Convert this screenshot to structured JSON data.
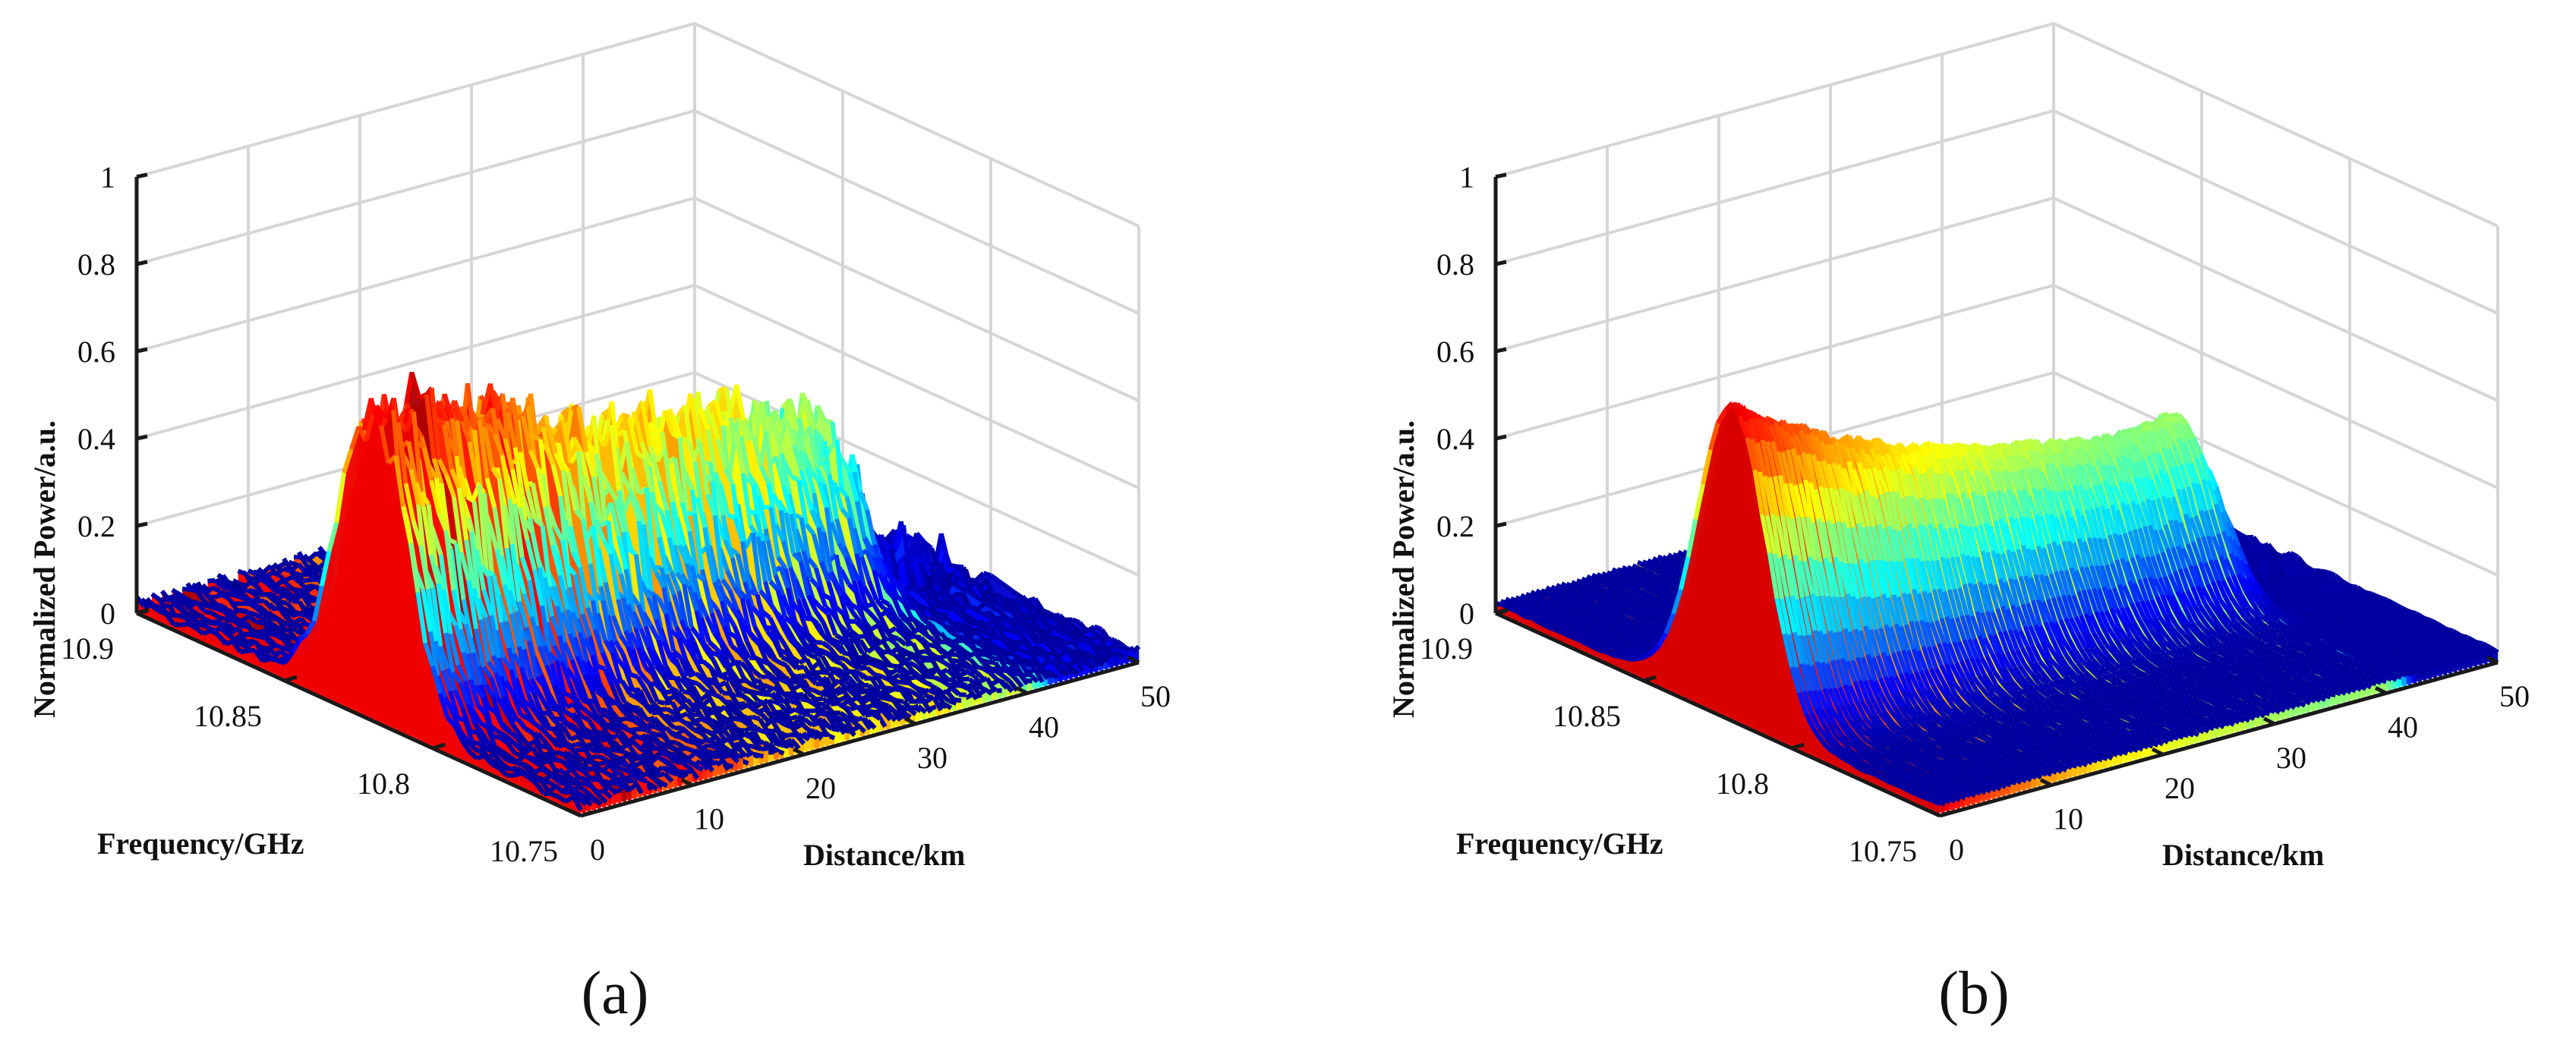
{
  "chart_data": [
    {
      "panel": "(a)",
      "type": "surface",
      "xlabel": "Frequency/GHz",
      "ylabel": "Distance/km",
      "zlabel": "Normalized Power/a.u.",
      "x_ticks": [
        "10.9",
        "10.85",
        "10.8",
        "10.75"
      ],
      "y_ticks": [
        "0",
        "10",
        "20",
        "30",
        "40",
        "50"
      ],
      "z_ticks": [
        "0",
        "0.2",
        "0.4",
        "0.6",
        "0.8",
        "1"
      ],
      "xlim": [
        10.75,
        10.9
      ],
      "ylim": [
        0,
        50
      ],
      "zlim": [
        0,
        1
      ],
      "grid": true,
      "colormap": "jet",
      "peak_frequency_ghz": 10.82,
      "distance_km": [
        0,
        5,
        10,
        15,
        20,
        25,
        30,
        35,
        40,
        45,
        50
      ],
      "peak_power": [
        0.68,
        0.65,
        0.6,
        0.55,
        0.5,
        0.48,
        0.44,
        0.4,
        0.36,
        0.0,
        0.0
      ],
      "annotations": "noisy Brillouin gain spectrum, peak power decays from about 0.7 near 0 km to about 0.4 near 40 km"
    },
    {
      "panel": "(b)",
      "type": "surface",
      "xlabel": "Frequency/GHz",
      "ylabel": "Distance/km",
      "zlabel": "Normalized Power/a.u.",
      "x_ticks": [
        "10.9",
        "10.85",
        "10.8",
        "10.75"
      ],
      "y_ticks": [
        "0",
        "10",
        "20",
        "30",
        "40",
        "50"
      ],
      "z_ticks": [
        "0",
        "0.2",
        "0.4",
        "0.6",
        "0.8",
        "1"
      ],
      "xlim": [
        10.75,
        10.9
      ],
      "ylim": [
        0,
        50
      ],
      "zlim": [
        0,
        1
      ],
      "grid": true,
      "colormap": "jet",
      "peak_frequency_ghz": 10.82,
      "distance_km": [
        0,
        5,
        10,
        15,
        20,
        25,
        30,
        35,
        40,
        45,
        50
      ],
      "peak_power": [
        0.7,
        0.62,
        0.55,
        0.5,
        0.46,
        0.43,
        0.4,
        0.38,
        0.4,
        0.0,
        0.0
      ],
      "annotations": "denoised Brillouin gain spectrum, smooth decay from about 0.7 to about 0.4"
    }
  ]
}
